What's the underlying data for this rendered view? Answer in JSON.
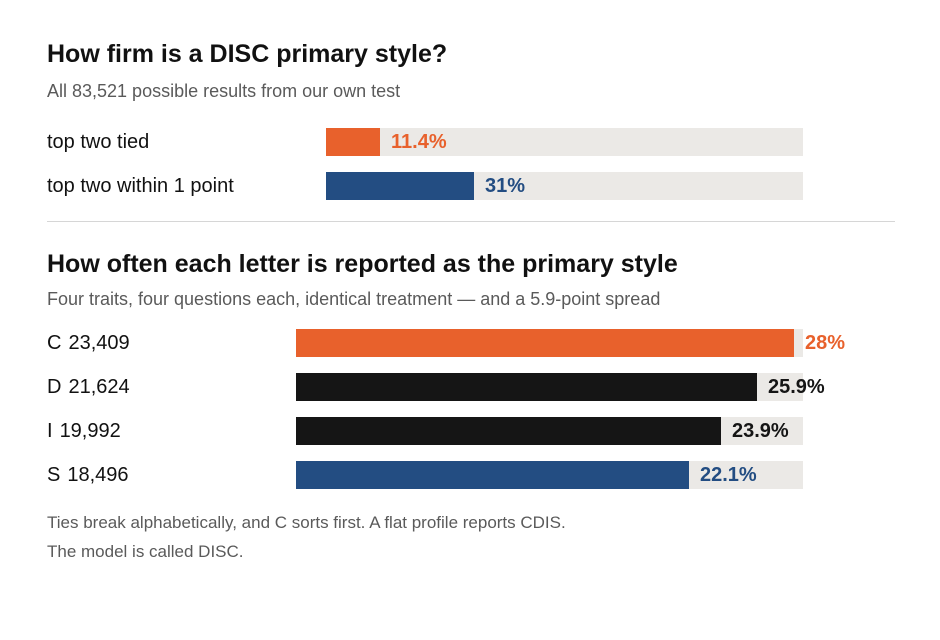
{
  "colors": {
    "orange": "#e8612c",
    "blue": "#234d82",
    "black": "#151515",
    "track": "#ebe9e6"
  },
  "chart_data": [
    {
      "type": "bar",
      "orientation": "horizontal",
      "title": "How firm is a DISC primary style?",
      "subtitle": "All 83,521 possible results from our own test",
      "xlim": [
        0,
        100
      ],
      "categories": [
        "top two tied",
        "top two within 1 point"
      ],
      "values": [
        11.4,
        31
      ],
      "value_labels": [
        "11.4%",
        "31%"
      ],
      "bar_colors": [
        "orange",
        "blue"
      ]
    },
    {
      "type": "bar",
      "orientation": "horizontal",
      "title": "How often each letter is reported as the primary style",
      "subtitle": "Four traits, four questions each, identical treatment — and a 5.9-point spread",
      "xlim": [
        0,
        28.5
      ],
      "categories": [
        "C",
        "D",
        "I",
        "S"
      ],
      "counts": [
        "23,409",
        "21,624",
        "19,992",
        "18,496"
      ],
      "values": [
        28,
        25.9,
        23.9,
        22.1
      ],
      "value_labels": [
        "28%",
        "25.9%",
        "23.9%",
        "22.1%"
      ],
      "bar_colors": [
        "orange",
        "black",
        "black",
        "blue"
      ]
    }
  ],
  "footnotes": [
    "Ties break alphabetically, and C sorts first. A flat profile reports CDIS.",
    "The model is called DISC."
  ]
}
